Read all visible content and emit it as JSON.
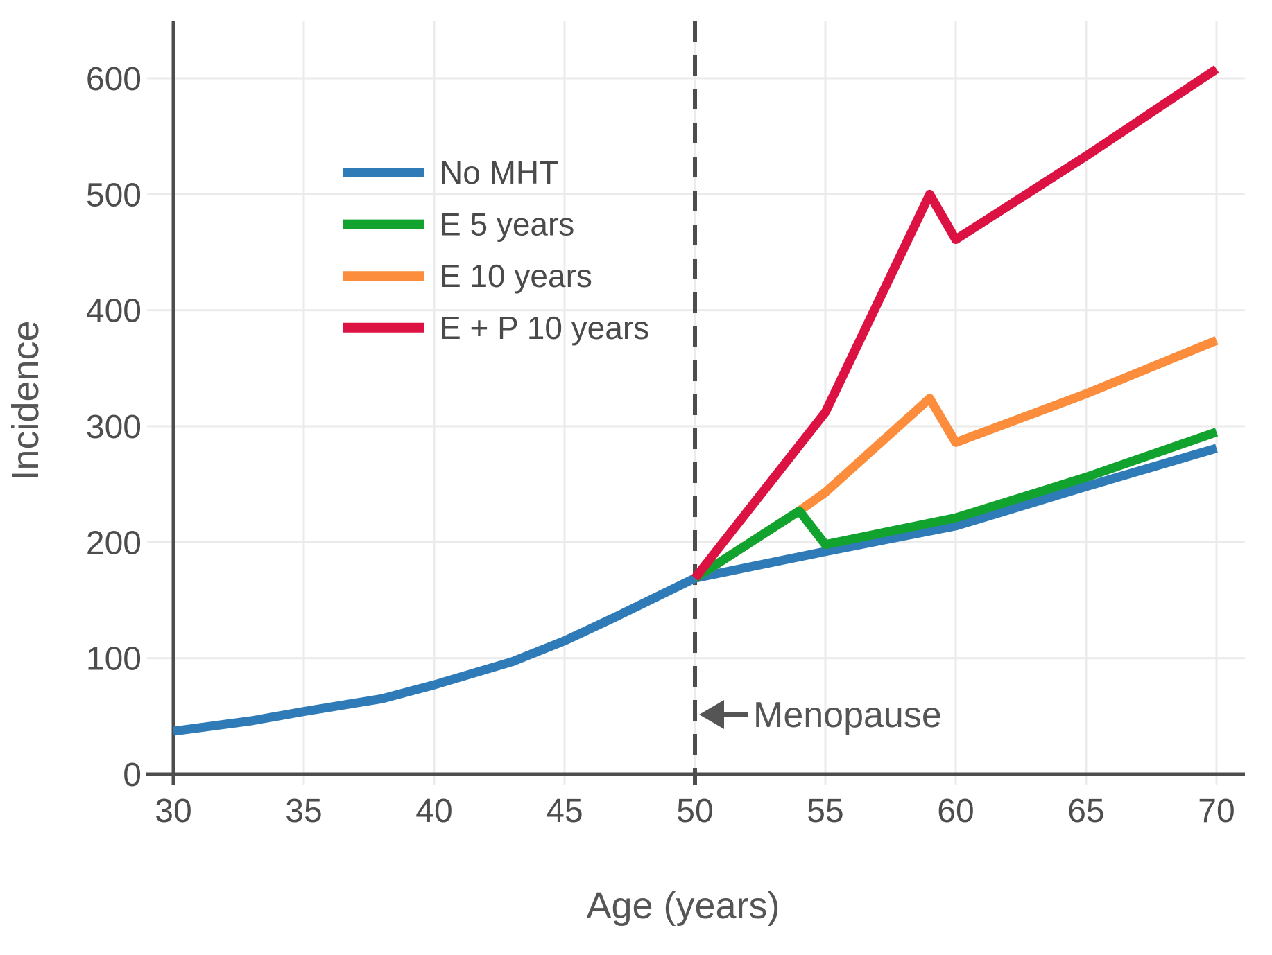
{
  "chart_data": {
    "type": "line",
    "title": "",
    "xlabel": "Age (years)",
    "ylabel": "Incidence",
    "xlim": [
      30,
      70
    ],
    "ylim": [
      0,
      650
    ],
    "x_ticks": [
      30,
      35,
      40,
      45,
      50,
      55,
      60,
      65,
      70
    ],
    "y_ticks": [
      0,
      100,
      200,
      300,
      400,
      500,
      600
    ],
    "grid": true,
    "legend_position": "upper-left-inside",
    "reference_line": {
      "x": 50,
      "style": "dashed",
      "color": "#4d4d4d"
    },
    "annotation": {
      "text": "Menopause",
      "arrow_direction": "left",
      "arrow_points_to_x": 50,
      "at_y": 52
    },
    "series": [
      {
        "name": "No MHT",
        "color": "#2e7bb8",
        "points": [
          [
            30,
            37
          ],
          [
            33,
            46
          ],
          [
            35,
            54
          ],
          [
            38,
            65
          ],
          [
            40,
            77
          ],
          [
            43,
            97
          ],
          [
            45,
            115
          ],
          [
            47,
            136
          ],
          [
            48,
            147
          ],
          [
            50,
            169
          ],
          [
            55,
            192
          ],
          [
            60,
            214
          ],
          [
            65,
            248
          ],
          [
            70,
            281
          ]
        ]
      },
      {
        "name": "E 5 years",
        "color": "#12a32f",
        "points": [
          [
            50,
            169
          ],
          [
            54,
            227
          ],
          [
            55,
            198
          ],
          [
            60,
            221
          ],
          [
            65,
            256
          ],
          [
            70,
            295
          ]
        ]
      },
      {
        "name": "E 10 years",
        "color": "#fb8d3c",
        "points": [
          [
            50,
            169
          ],
          [
            54,
            227
          ],
          [
            55,
            243
          ],
          [
            59,
            324
          ],
          [
            60,
            286
          ],
          [
            65,
            328
          ],
          [
            70,
            374
          ]
        ]
      },
      {
        "name": "E + P 10 years",
        "color": "#dc1243",
        "points": [
          [
            50,
            169
          ],
          [
            55,
            312
          ],
          [
            59,
            500
          ],
          [
            60,
            461
          ],
          [
            65,
            533
          ],
          [
            70,
            608
          ]
        ]
      }
    ],
    "axis_color": "#4d4d4d",
    "grid_color": "#ebebeb",
    "background": "#ffffff"
  }
}
